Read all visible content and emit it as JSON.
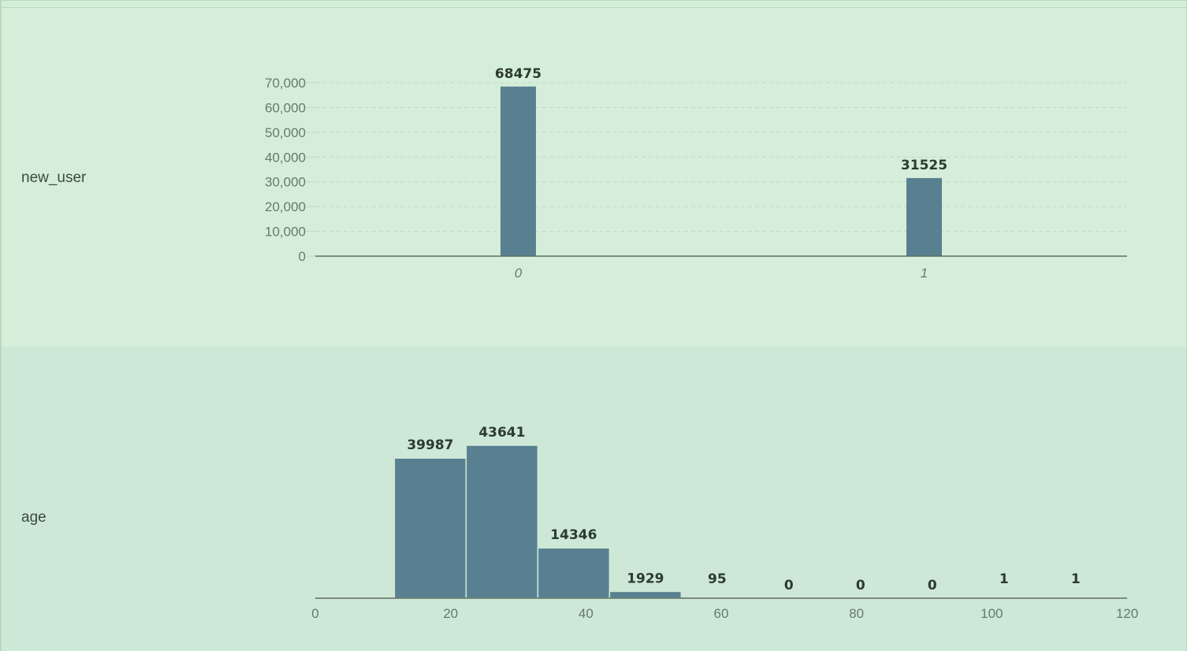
{
  "colors": {
    "bar": "#598090",
    "axis": "#5e6e64",
    "grid": "#bcd9c6",
    "panel_top_bg": "#d5eed9",
    "panel_bottom_bg": "#cde8d6"
  },
  "rows": [
    {
      "label": "new_user"
    },
    {
      "label": "age"
    }
  ],
  "chart_data": [
    {
      "type": "bar",
      "row_label": "new_user",
      "categories": [
        "0",
        "1"
      ],
      "values": [
        68475,
        31525
      ],
      "ylim": [
        0,
        70000
      ],
      "y_ticks": [
        0,
        10000,
        20000,
        30000,
        40000,
        50000,
        60000,
        70000
      ],
      "y_tick_labels": [
        "0",
        "10,000",
        "20,000",
        "30,000",
        "40,000",
        "50,000",
        "60,000",
        "70,000"
      ],
      "grid": true
    },
    {
      "type": "bar",
      "subtype": "histogram",
      "row_label": "age",
      "bins": [
        [
          11.7,
          22.3
        ],
        [
          22.3,
          32.9
        ],
        [
          32.9,
          43.5
        ],
        [
          43.5,
          54.1
        ],
        [
          54.1,
          64.7
        ],
        [
          64.7,
          75.3
        ],
        [
          75.3,
          85.9
        ],
        [
          85.9,
          96.5
        ],
        [
          96.5,
          107.1
        ],
        [
          107.1,
          117.7
        ]
      ],
      "values": [
        39987,
        43641,
        14346,
        1929,
        95,
        0,
        0,
        0,
        1,
        1
      ],
      "xlim": [
        0,
        120
      ],
      "x_ticks": [
        0,
        20,
        40,
        60,
        80,
        100,
        120
      ],
      "x_tick_labels": [
        "0",
        "20",
        "40",
        "60",
        "80",
        "100",
        "120"
      ],
      "ymax": 43641,
      "grid": false
    }
  ]
}
